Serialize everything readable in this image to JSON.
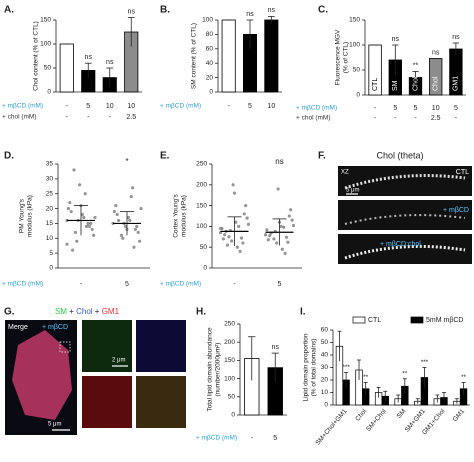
{
  "chart_data": [
    {
      "panel": "A.",
      "type": "bar",
      "ylabel": [
        "Chol content (% of CTL)"
      ],
      "ylim": [
        0,
        150
      ],
      "yticks": [
        0,
        50,
        100,
        150
      ],
      "values": [
        100,
        45,
        30,
        125
      ],
      "errors": [
        0,
        15,
        20,
        30
      ],
      "colors": [
        "#ffffff",
        "#000000",
        "#000000",
        "#8c8c8c"
      ],
      "annotations": [
        null,
        "ns",
        "ns",
        "ns"
      ],
      "rows": [
        {
          "label": "+ mβCD (mM)",
          "color": "#2a9fd6",
          "values": [
            "-",
            "5",
            "10",
            "10"
          ]
        },
        {
          "label": "+ chol (mM)",
          "color": "#333333",
          "values": [
            "-",
            "-",
            "-",
            "2.5"
          ]
        }
      ]
    },
    {
      "panel": "B.",
      "type": "bar",
      "ylabel": [
        "SM content (% of CTL)"
      ],
      "ylim": [
        0,
        100
      ],
      "yticks": [
        0,
        20,
        40,
        60,
        80,
        100
      ],
      "values": [
        100,
        80,
        100
      ],
      "errors": [
        0,
        20,
        5
      ],
      "colors": [
        "#ffffff",
        "#000000",
        "#000000"
      ],
      "annotations": [
        null,
        "ns",
        "ns"
      ],
      "rows": [
        {
          "label": "+ mβCD (mM)",
          "color": "#2a9fd6",
          "values": [
            "-",
            "5",
            "10"
          ]
        }
      ]
    },
    {
      "panel": "C.",
      "type": "bar",
      "ylabel": [
        "Fluorescence MGV",
        "(% of CTL)"
      ],
      "ylim": [
        0,
        150
      ],
      "yticks": [
        0,
        50,
        100,
        150
      ],
      "values": [
        100,
        70,
        35,
        73,
        92
      ],
      "errors": [
        0,
        30,
        12,
        0,
        12
      ],
      "colors": [
        "#ffffff",
        "#000000",
        "#000000",
        "#8c8c8c",
        "#000000"
      ],
      "bar_labels": [
        "CTL",
        "SM",
        "Chol",
        "Chol",
        "GM1"
      ],
      "annotations": [
        null,
        "ns",
        "**",
        "ns",
        "ns"
      ],
      "rows": [
        {
          "label": "+ mβCD (mM)",
          "color": "#2a9fd6",
          "values": [
            "-",
            "5",
            "5",
            "10",
            "5"
          ]
        },
        {
          "label": "+ chol (mM)",
          "color": "#333333",
          "values": [
            "-",
            "-",
            "-",
            "2.5",
            "-"
          ]
        }
      ]
    },
    {
      "panel": "D.",
      "type": "scatter",
      "ylabel": [
        "PM Young's",
        "modulus (kPa)"
      ],
      "ylim": [
        0,
        35
      ],
      "yticks": [
        0,
        5,
        10,
        15,
        20,
        25,
        30,
        35
      ],
      "series": [
        {
          "values": [
            16,
            14,
            18,
            12,
            20,
            15,
            17,
            9,
            22,
            13,
            25,
            16,
            19,
            11,
            14,
            28,
            6,
            17,
            15,
            21,
            33,
            8
          ]
        },
        {
          "values": [
            15,
            13,
            17,
            11,
            19,
            14,
            16,
            10,
            21,
            12,
            24,
            15,
            18,
            9,
            27,
            14,
            16,
            20,
            7,
            13
          ]
        }
      ],
      "means": [
        16,
        15
      ],
      "sd": [
        5,
        4
      ],
      "annotations": [
        null,
        "*"
      ],
      "rows": [
        {
          "label": "+ mβCD (mM)",
          "color": "#2a9fd6",
          "values": [
            "-",
            "5"
          ]
        }
      ]
    },
    {
      "panel": "E.",
      "type": "scatter",
      "ylabel": [
        "Cortex Young's",
        "modulus (kPa)"
      ],
      "ylim": [
        0,
        250
      ],
      "yticks": [
        0,
        50,
        100,
        150,
        200,
        250
      ],
      "series": [
        {
          "values": [
            85,
            60,
            110,
            75,
            95,
            130,
            50,
            90,
            70,
            150,
            100,
            65,
            80,
            120,
            40,
            200,
            88,
            105,
            72,
            180,
            55,
            95
          ]
        },
        {
          "values": [
            80,
            62,
            100,
            70,
            92,
            125,
            45,
            88,
            68,
            140,
            98,
            60,
            78,
            115,
            35,
            190,
            84,
            102,
            74,
            110
          ]
        }
      ],
      "means": [
        88,
        86
      ],
      "sd": [
        35,
        32
      ],
      "annotations": [
        null,
        "ns"
      ],
      "rows": [
        {
          "label": "+ mβCD (mM)",
          "color": "#2a9fd6",
          "values": [
            "-",
            "5"
          ]
        }
      ]
    },
    {
      "panel": "H.",
      "type": "bar",
      "ylabel": [
        "Total lipid domain abundance",
        "(number/2000μm²)"
      ],
      "ylim": [
        0,
        250
      ],
      "yticks": [
        0,
        50,
        100,
        150,
        200,
        250
      ],
      "values": [
        155,
        130
      ],
      "errors": [
        60,
        40
      ],
      "colors": [
        "#ffffff",
        "#000000"
      ],
      "annotations": [
        null,
        "ns"
      ],
      "rows": [
        {
          "label": "+ mβCD (mM)",
          "color": "#2a9fd6",
          "values": [
            "-",
            "5"
          ]
        }
      ]
    },
    {
      "panel": "I.",
      "type": "bar",
      "ylabel": [
        "Lipid domain proportion",
        "(% of total domains)"
      ],
      "ylim": [
        0,
        60
      ],
      "yticks": [
        0,
        10,
        20,
        30,
        40,
        50,
        60
      ],
      "categories": [
        "SM+Chol+GM1",
        "Chol",
        "SM+Chol",
        "SM",
        "SM+GM1",
        "GM1+Chol",
        "GM1"
      ],
      "series": [
        {
          "name": "CTL",
          "color": "#ffffff",
          "values": [
            47,
            28,
            10,
            5,
            3,
            5,
            3
          ],
          "errors": [
            12,
            8,
            4,
            3,
            2,
            3,
            2
          ]
        },
        {
          "name": "5mM mβCD",
          "color": "#000000",
          "values": [
            20,
            13,
            7,
            15,
            22,
            6,
            13
          ],
          "errors": [
            6,
            5,
            4,
            6,
            8,
            4,
            5
          ]
        }
      ],
      "annotations": [
        "***",
        "**",
        null,
        "**",
        "***",
        null,
        "**"
      ]
    }
  ],
  "images": {
    "F": {
      "panel": "F.",
      "title": "Chol (theta)",
      "axis": "XZ",
      "labels": [
        "CTL",
        "+ mβCD",
        "+ mβCD:chol"
      ],
      "scale": "5 μm"
    },
    "G": {
      "panel": "G.",
      "title_parts": [
        "SM",
        " + ",
        "Chol",
        " + ",
        "GM1"
      ],
      "merge": "Merge",
      "treatment": "+ mβCD",
      "scale_small": "2 μm",
      "scale_main": "5 μm"
    }
  }
}
